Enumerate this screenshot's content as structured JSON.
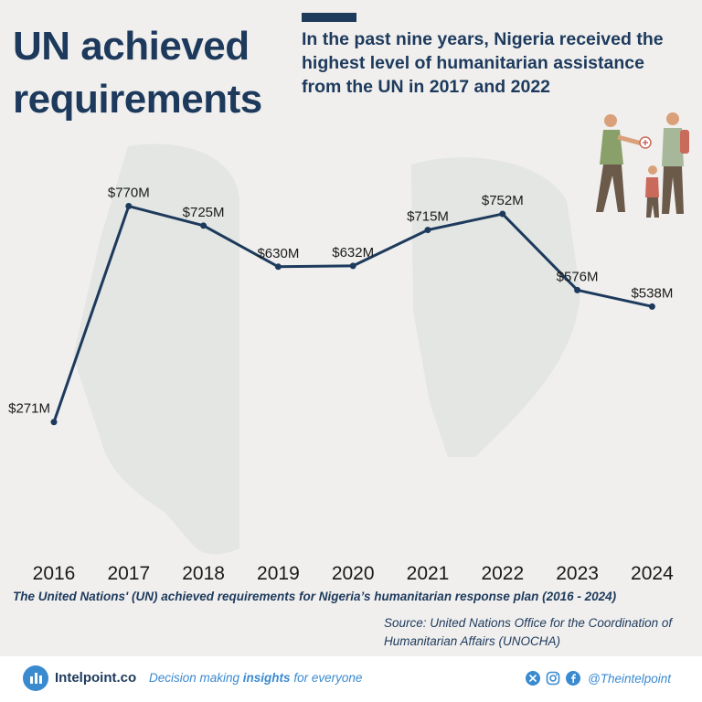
{
  "title": "UN achieved requirements",
  "subtitle": "In the past nine years, Nigeria received the highest level of humanitarian assistance from the UN in 2017 and 2022",
  "caption": "The United Nations' (UN) achieved requirements for Nigeria’s humanitarian response plan (2016 - 2024)",
  "source": "Source: United Nations Office for the Coordination of Humanitarian Affairs (UNOCHA)",
  "footer": {
    "brand": "Intelpoint.co",
    "tagline_pre": "Decision making ",
    "tagline_bold": "insights",
    "tagline_post": " for everyone",
    "handle": "@Theintelpoint",
    "icons": [
      "x-icon",
      "instagram-icon",
      "facebook-icon"
    ]
  },
  "colors": {
    "navy": "#1d3a5c",
    "accent": "#3a8ad0",
    "background": "#f0efee"
  },
  "chart_data": {
    "type": "line",
    "categories": [
      "2016",
      "2017",
      "2018",
      "2019",
      "2020",
      "2021",
      "2022",
      "2023",
      "2024"
    ],
    "values": [
      271,
      770,
      725,
      630,
      632,
      715,
      752,
      576,
      538
    ],
    "data_labels": [
      "$271M",
      "$770M",
      "$725M",
      "$630M",
      "$632M",
      "$715M",
      "$752M",
      "$576M",
      "$538M"
    ],
    "ylim": [
      0,
      900
    ],
    "grid": false,
    "y_axis_visible": false
  }
}
